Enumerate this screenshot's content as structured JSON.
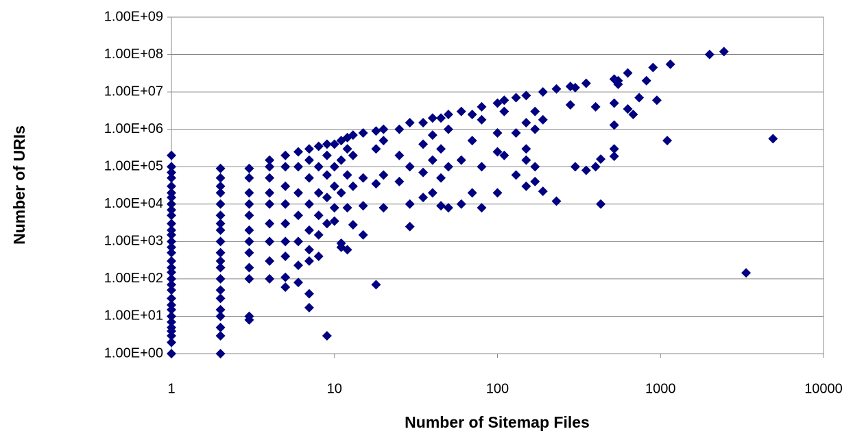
{
  "chart_data": {
    "type": "scatter",
    "x_label": "Number of Sitemap Files",
    "y_label": "Number of URIs",
    "x_log": true,
    "y_log": true,
    "grid": true,
    "color": "#000080",
    "xlim": [
      1,
      10000
    ],
    "xticks": [
      1,
      10,
      100,
      1000,
      10000
    ],
    "ylim": [
      1,
      1000000000
    ],
    "yticks": [
      {
        "value": 1,
        "label": "1.00E+00"
      },
      {
        "value": 10,
        "label": "1.00E+01"
      },
      {
        "value": 100,
        "label": "1.00E+02"
      },
      {
        "value": 1000,
        "label": "1.00E+03"
      },
      {
        "value": 10000,
        "label": "1.00E+04"
      },
      {
        "value": 100000,
        "label": "1.00E+05"
      },
      {
        "value": 1000000,
        "label": "1.00E+06"
      },
      {
        "value": 10000000,
        "label": "1.00E+07"
      },
      {
        "value": 100000000,
        "label": "1.00E+08"
      },
      {
        "value": 1000000000,
        "label": "1.00E+09"
      }
    ],
    "x": [
      1,
      1,
      1,
      1,
      1,
      1,
      1,
      1,
      1,
      1,
      1,
      1,
      1,
      1,
      1,
      1,
      1,
      1,
      1,
      1,
      1,
      1,
      1,
      1,
      1,
      1,
      1,
      1,
      1,
      1,
      1,
      1,
      2,
      2,
      2,
      2,
      2,
      2,
      2,
      2,
      2,
      2,
      2,
      2,
      2,
      2,
      2,
      2,
      2,
      2,
      2,
      2,
      3,
      3,
      3,
      3,
      3,
      3,
      3,
      3,
      3,
      3,
      3,
      3,
      4,
      4,
      4,
      4,
      4,
      4,
      4,
      4,
      4,
      5,
      5,
      5,
      5,
      5,
      5,
      5,
      5,
      5,
      6,
      6,
      6,
      6,
      6,
      6,
      6,
      7,
      7,
      7,
      7,
      7,
      7,
      7,
      7,
      7,
      8,
      8,
      8,
      8,
      8,
      8,
      9,
      9,
      9,
      9,
      9,
      9,
      10,
      10,
      10,
      10,
      10,
      11,
      11,
      11,
      11,
      11,
      12,
      12,
      12,
      12,
      12,
      13,
      13,
      13,
      13,
      15,
      15,
      15,
      15,
      18,
      18,
      18,
      18,
      20,
      20,
      20,
      20,
      25,
      25,
      25,
      29,
      29,
      29,
      29,
      35,
      35,
      35,
      35,
      40,
      40,
      40,
      40,
      45,
      45,
      45,
      45,
      50,
      50,
      50,
      50,
      60,
      60,
      60,
      70,
      70,
      70,
      80,
      80,
      80,
      80,
      100,
      100,
      100,
      100,
      110,
      110,
      110,
      130,
      130,
      130,
      150,
      150,
      150,
      150,
      150,
      170,
      170,
      170,
      170,
      190,
      190,
      190,
      230,
      230,
      280,
      280,
      300,
      300,
      350,
      350,
      400,
      400,
      430,
      430,
      520,
      520,
      520,
      520,
      520,
      550,
      550,
      630,
      630,
      680,
      740,
      820,
      900,
      950,
      1100,
      1150,
      2000,
      2450,
      3350,
      4900
    ],
    "values": [
      1,
      2,
      3,
      4,
      5,
      7,
      10,
      15,
      20,
      30,
      50,
      70,
      100,
      150,
      200,
      300,
      500,
      700,
      1000,
      1500,
      2000,
      3000,
      5000,
      7000,
      10000,
      15000,
      20000,
      30000,
      50000,
      70000,
      100000,
      200000,
      1,
      3,
      5,
      10,
      15,
      30,
      50,
      100,
      200,
      300,
      500,
      1000,
      2000,
      3000,
      5000,
      10000,
      20000,
      30000,
      50000,
      90000,
      8,
      10,
      100,
      200,
      500,
      1000,
      2000,
      5000,
      10000,
      20000,
      50000,
      90000,
      100,
      300,
      1000,
      3000,
      10000,
      20000,
      50000,
      100000,
      150000,
      60,
      110,
      400,
      1000,
      3000,
      10000,
      30000,
      100000,
      200000,
      80,
      230,
      1000,
      5000,
      20000,
      100000,
      250000,
      17,
      40,
      300,
      600,
      2000,
      10000,
      50000,
      150000,
      300000,
      400,
      1500,
      5000,
      20000,
      100000,
      350000,
      3,
      3000,
      15000,
      60000,
      200000,
      400000,
      3500,
      8000,
      30000,
      100000,
      400000,
      900,
      700,
      20000,
      150000,
      500000,
      600,
      8000,
      60000,
      300000,
      600000,
      2800,
      30000,
      200000,
      700000,
      1500,
      9000,
      50000,
      800000,
      70,
      35000,
      300000,
      900000,
      8000,
      60000,
      500000,
      1000000,
      40000,
      200000,
      1000000,
      2500,
      10000,
      100000,
      1500000,
      15000,
      70000,
      400000,
      1500000,
      20000,
      150000,
      700000,
      2000000,
      9000,
      50000,
      300000,
      2000000,
      8000,
      100000,
      1000000,
      2500000,
      10000,
      150000,
      3000000,
      20000,
      500000,
      2500000,
      8000,
      100000,
      1800000,
      4000000,
      20000,
      250000,
      800000,
      5000000,
      200000,
      3000000,
      6000000,
      60000,
      800000,
      7000000,
      30000,
      150000,
      300000,
      1500000,
      8000000,
      40000,
      100000,
      3000000,
      1000000,
      22000,
      1800000,
      10000000,
      12000,
      12000000,
      4500000,
      14000000,
      100000,
      13000000,
      80000,
      17000000,
      100000,
      4000000,
      10000,
      160000,
      190000,
      300000,
      1300000,
      5000000,
      22000000,
      20000000,
      16000000,
      32000000,
      3500000,
      2500000,
      7000000,
      20000000,
      45000000,
      6000000,
      500000,
      55000000,
      100000000,
      120000000,
      145,
      560000
    ]
  }
}
